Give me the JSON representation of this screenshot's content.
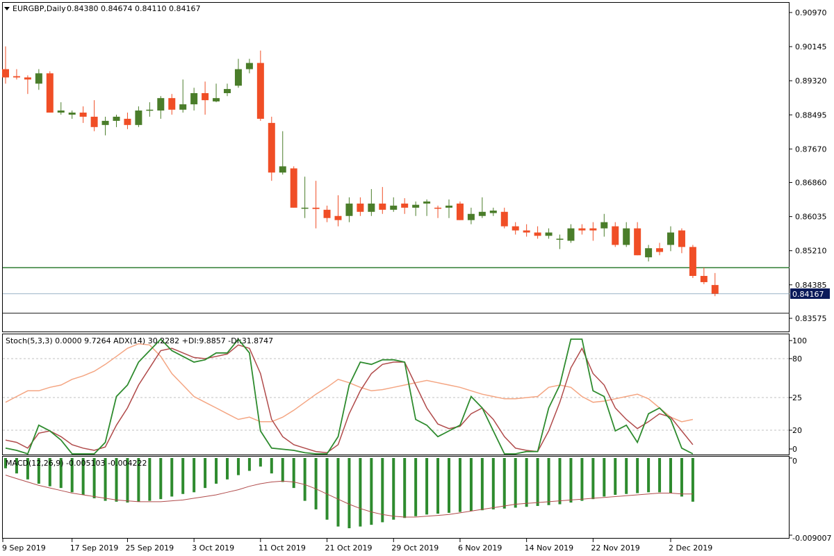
{
  "header": {
    "symbol_label": "EURGBP,Daily",
    "ohlc_text": "0.84380 0.84674 0.84110 0.84167",
    "stoch_adx_text": "Stoch(5,3,3) 0.0000 9.7264  ADX(14) 30.2282 +DI:9.8857 -DI:31.8747",
    "macd_text": "MACD(12,26,9) -0.005103 -0.004222"
  },
  "colors": {
    "bull": "#4a7d2a",
    "bear": "#f04e26",
    "support_line": "#2e7d32",
    "stoch_main": "#2e8b2e",
    "stoch_signal": "#b04a4a",
    "adx": "#f4a582",
    "macd_hist": "#2e8b2e",
    "macd_signal": "#b04a4a",
    "price_tag_bg": "#0a1a5a"
  },
  "chart_data": {
    "type": "candlestick",
    "symbol": "EURGBP",
    "timeframe": "Daily",
    "price_axis": {
      "ticks": [
        "0.90970",
        "0.90145",
        "0.89320",
        "0.88495",
        "0.87670",
        "0.86860",
        "0.86035",
        "0.85210",
        "0.84385",
        "0.83575"
      ],
      "current_price_label": "0.84167"
    },
    "date_labels": [
      "9 Sep 2019",
      "17 Sep 2019",
      "25 Sep 2019",
      "3 Oct 2019",
      "11 Oct 2019",
      "21 Oct 2019",
      "29 Oct 2019",
      "6 Nov 2019",
      "14 Nov 2019",
      "22 Nov 2019",
      "2 Dec 2019"
    ],
    "candles": [
      {
        "o": 0.896,
        "h": 0.9015,
        "l": 0.8925,
        "c": 0.894
      },
      {
        "o": 0.8943,
        "h": 0.896,
        "l": 0.8935,
        "c": 0.894
      },
      {
        "o": 0.894,
        "h": 0.8945,
        "l": 0.89,
        "c": 0.8935
      },
      {
        "o": 0.8925,
        "h": 0.896,
        "l": 0.891,
        "c": 0.895
      },
      {
        "o": 0.895,
        "h": 0.8955,
        "l": 0.8855,
        "c": 0.8855
      },
      {
        "o": 0.8855,
        "h": 0.888,
        "l": 0.885,
        "c": 0.886
      },
      {
        "o": 0.885,
        "h": 0.886,
        "l": 0.884,
        "c": 0.8855
      },
      {
        "o": 0.8855,
        "h": 0.887,
        "l": 0.883,
        "c": 0.8845
      },
      {
        "o": 0.8845,
        "h": 0.8885,
        "l": 0.881,
        "c": 0.882
      },
      {
        "o": 0.8825,
        "h": 0.8845,
        "l": 0.88,
        "c": 0.8835
      },
      {
        "o": 0.8835,
        "h": 0.885,
        "l": 0.882,
        "c": 0.8845
      },
      {
        "o": 0.884,
        "h": 0.8855,
        "l": 0.8815,
        "c": 0.8825
      },
      {
        "o": 0.8825,
        "h": 0.887,
        "l": 0.882,
        "c": 0.886
      },
      {
        "o": 0.886,
        "h": 0.888,
        "l": 0.8845,
        "c": 0.8862
      },
      {
        "o": 0.886,
        "h": 0.8895,
        "l": 0.884,
        "c": 0.889
      },
      {
        "o": 0.889,
        "h": 0.89,
        "l": 0.885,
        "c": 0.8862
      },
      {
        "o": 0.8862,
        "h": 0.8935,
        "l": 0.8855,
        "c": 0.8875
      },
      {
        "o": 0.8875,
        "h": 0.8915,
        "l": 0.886,
        "c": 0.8902
      },
      {
        "o": 0.8902,
        "h": 0.893,
        "l": 0.885,
        "c": 0.8885
      },
      {
        "o": 0.8882,
        "h": 0.8925,
        "l": 0.888,
        "c": 0.889
      },
      {
        "o": 0.8902,
        "h": 0.8925,
        "l": 0.8895,
        "c": 0.8912
      },
      {
        "o": 0.892,
        "h": 0.8985,
        "l": 0.8915,
        "c": 0.896
      },
      {
        "o": 0.896,
        "h": 0.8985,
        "l": 0.895,
        "c": 0.8975
      },
      {
        "o": 0.8975,
        "h": 0.9005,
        "l": 0.8835,
        "c": 0.884
      },
      {
        "o": 0.883,
        "h": 0.8845,
        "l": 0.869,
        "c": 0.871
      },
      {
        "o": 0.871,
        "h": 0.881,
        "l": 0.8705,
        "c": 0.8725
      },
      {
        "o": 0.872,
        "h": 0.8725,
        "l": 0.8625,
        "c": 0.8625
      },
      {
        "o": 0.8625,
        "h": 0.87,
        "l": 0.86,
        "c": 0.8625
      },
      {
        "o": 0.8625,
        "h": 0.869,
        "l": 0.8575,
        "c": 0.8622
      },
      {
        "o": 0.862,
        "h": 0.863,
        "l": 0.859,
        "c": 0.86
      },
      {
        "o": 0.8605,
        "h": 0.8655,
        "l": 0.858,
        "c": 0.8595
      },
      {
        "o": 0.8605,
        "h": 0.865,
        "l": 0.859,
        "c": 0.8635
      },
      {
        "o": 0.8635,
        "h": 0.865,
        "l": 0.8605,
        "c": 0.8615
      },
      {
        "o": 0.8615,
        "h": 0.867,
        "l": 0.8605,
        "c": 0.8635
      },
      {
        "o": 0.8635,
        "h": 0.8675,
        "l": 0.861,
        "c": 0.862
      },
      {
        "o": 0.862,
        "h": 0.865,
        "l": 0.8615,
        "c": 0.863
      },
      {
        "o": 0.8635,
        "h": 0.8648,
        "l": 0.861,
        "c": 0.8625
      },
      {
        "o": 0.8625,
        "h": 0.864,
        "l": 0.8605,
        "c": 0.8632
      },
      {
        "o": 0.8635,
        "h": 0.8645,
        "l": 0.8605,
        "c": 0.864
      },
      {
        "o": 0.8625,
        "h": 0.863,
        "l": 0.86,
        "c": 0.8624
      },
      {
        "o": 0.8625,
        "h": 0.8645,
        "l": 0.86,
        "c": 0.863
      },
      {
        "o": 0.8635,
        "h": 0.864,
        "l": 0.8595,
        "c": 0.8595
      },
      {
        "o": 0.8595,
        "h": 0.8625,
        "l": 0.8585,
        "c": 0.861
      },
      {
        "o": 0.8605,
        "h": 0.865,
        "l": 0.86,
        "c": 0.8615
      },
      {
        "o": 0.8612,
        "h": 0.8625,
        "l": 0.8605,
        "c": 0.8618
      },
      {
        "o": 0.8615,
        "h": 0.8625,
        "l": 0.8575,
        "c": 0.858
      },
      {
        "o": 0.858,
        "h": 0.859,
        "l": 0.856,
        "c": 0.857
      },
      {
        "o": 0.857,
        "h": 0.8585,
        "l": 0.8555,
        "c": 0.8565
      },
      {
        "o": 0.8565,
        "h": 0.858,
        "l": 0.855,
        "c": 0.8557
      },
      {
        "o": 0.8557,
        "h": 0.8575,
        "l": 0.855,
        "c": 0.8565
      },
      {
        "o": 0.855,
        "h": 0.856,
        "l": 0.8525,
        "c": 0.855
      },
      {
        "o": 0.8545,
        "h": 0.8585,
        "l": 0.854,
        "c": 0.8575
      },
      {
        "o": 0.8575,
        "h": 0.8585,
        "l": 0.856,
        "c": 0.857
      },
      {
        "o": 0.8575,
        "h": 0.859,
        "l": 0.8545,
        "c": 0.857
      },
      {
        "o": 0.8575,
        "h": 0.861,
        "l": 0.8555,
        "c": 0.859
      },
      {
        "o": 0.858,
        "h": 0.859,
        "l": 0.853,
        "c": 0.8535
      },
      {
        "o": 0.8535,
        "h": 0.859,
        "l": 0.853,
        "c": 0.8575
      },
      {
        "o": 0.8575,
        "h": 0.859,
        "l": 0.851,
        "c": 0.851
      },
      {
        "o": 0.8505,
        "h": 0.8535,
        "l": 0.8495,
        "c": 0.8527
      },
      {
        "o": 0.8527,
        "h": 0.854,
        "l": 0.851,
        "c": 0.8518
      },
      {
        "o": 0.8535,
        "h": 0.858,
        "l": 0.852,
        "c": 0.8565
      },
      {
        "o": 0.857,
        "h": 0.8575,
        "l": 0.8515,
        "c": 0.853
      },
      {
        "o": 0.853,
        "h": 0.8535,
        "l": 0.8455,
        "c": 0.846
      },
      {
        "o": 0.846,
        "h": 0.848,
        "l": 0.844,
        "c": 0.8445
      },
      {
        "o": 0.8438,
        "h": 0.8467,
        "l": 0.8411,
        "c": 0.8417
      }
    ],
    "support_levels": [
      0.848,
      0.837
    ],
    "stoch_axis_ticks": [
      "100",
      "80",
      "25",
      "20",
      "0"
    ],
    "stoch_main": [
      5,
      3,
      0,
      25,
      20,
      12,
      0,
      0,
      0,
      10,
      50,
      60,
      80,
      90,
      100,
      90,
      85,
      80,
      82,
      88,
      88,
      100,
      88,
      20,
      5,
      4,
      3,
      1,
      0,
      0,
      15,
      60,
      80,
      78,
      82,
      82,
      80,
      30,
      25,
      15,
      20,
      25,
      50,
      40,
      20,
      0,
      0,
      2,
      2,
      40,
      60,
      100,
      100,
      55,
      50,
      20,
      25,
      10,
      35,
      40,
      30,
      5,
      0
    ],
    "stoch_signal": [
      12,
      10,
      5,
      18,
      20,
      15,
      8,
      5,
      3,
      6,
      25,
      40,
      60,
      75,
      90,
      92,
      88,
      84,
      83,
      85,
      87,
      95,
      92,
      70,
      30,
      15,
      8,
      5,
      2,
      1,
      8,
      35,
      55,
      70,
      78,
      80,
      80,
      60,
      40,
      26,
      22,
      24,
      35,
      40,
      30,
      15,
      5,
      3,
      2,
      20,
      45,
      75,
      92,
      70,
      60,
      40,
      30,
      22,
      28,
      35,
      32,
      20,
      8
    ],
    "adx": [
      45,
      50,
      55,
      55,
      58,
      60,
      65,
      68,
      72,
      78,
      85,
      92,
      96,
      95,
      85,
      70,
      60,
      50,
      45,
      40,
      35,
      30,
      32,
      28,
      28,
      32,
      38,
      45,
      52,
      58,
      65,
      62,
      58,
      55,
      56,
      58,
      60,
      62,
      64,
      62,
      60,
      58,
      55,
      52,
      50,
      48,
      48,
      49,
      50,
      58,
      60,
      58,
      50,
      45,
      46,
      48,
      50,
      52,
      48,
      40,
      32,
      28,
      30
    ],
    "macd_axis_ticks": [
      "0",
      "-0.009007"
    ],
    "macd_histogram": [
      -0.0012,
      -0.0018,
      -0.0025,
      -0.003,
      -0.0033,
      -0.0035,
      -0.004,
      -0.0043,
      -0.0047,
      -0.005,
      -0.0051,
      -0.0052,
      -0.0051,
      -0.005,
      -0.0048,
      -0.0045,
      -0.0042,
      -0.004,
      -0.0035,
      -0.003,
      -0.0025,
      -0.002,
      -0.0015,
      -0.001,
      -0.0018,
      -0.0028,
      -0.0035,
      -0.005,
      -0.006,
      -0.0072,
      -0.008,
      -0.0082,
      -0.008,
      -0.0078,
      -0.0075,
      -0.0072,
      -0.007,
      -0.0068,
      -0.0066,
      -0.0065,
      -0.0064,
      -0.0063,
      -0.0062,
      -0.0061,
      -0.006,
      -0.0059,
      -0.0058,
      -0.0057,
      -0.0056,
      -0.0055,
      -0.0054,
      -0.0052,
      -0.005,
      -0.0048,
      -0.0045,
      -0.0043,
      -0.0042,
      -0.0041,
      -0.004,
      -0.004,
      -0.0041,
      -0.0045,
      -0.0051
    ],
    "macd_signal": [
      -0.002,
      -0.0024,
      -0.0028,
      -0.0032,
      -0.0035,
      -0.0038,
      -0.0041,
      -0.0043,
      -0.0045,
      -0.0047,
      -0.0049,
      -0.005,
      -0.0051,
      -0.0051,
      -0.0051,
      -0.005,
      -0.0049,
      -0.0047,
      -0.0045,
      -0.0043,
      -0.004,
      -0.0037,
      -0.0033,
      -0.003,
      -0.0028,
      -0.0027,
      -0.0028,
      -0.0031,
      -0.0036,
      -0.0042,
      -0.0048,
      -0.0054,
      -0.0059,
      -0.0063,
      -0.0066,
      -0.0068,
      -0.0069,
      -0.0069,
      -0.0068,
      -0.0067,
      -0.0066,
      -0.0064,
      -0.0062,
      -0.006,
      -0.0058,
      -0.0056,
      -0.0054,
      -0.0053,
      -0.0052,
      -0.0051,
      -0.005,
      -0.0049,
      -0.0048,
      -0.0047,
      -0.0046,
      -0.0045,
      -0.0044,
      -0.0043,
      -0.0042,
      -0.0041,
      -0.0041,
      -0.0042,
      -0.0042
    ]
  }
}
